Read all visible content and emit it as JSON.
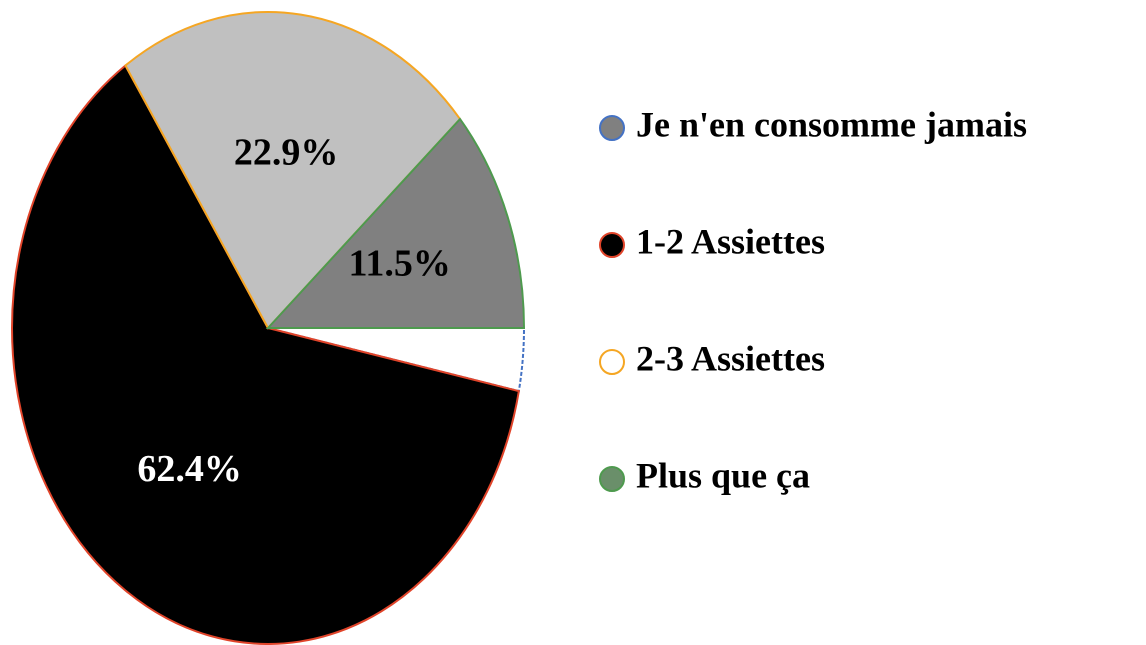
{
  "chart_data": {
    "type": "pie",
    "categories": [
      "Je n'en consomme jamais",
      "1-2 Assiettes",
      "2-3 Assiettes",
      "Plus que ça"
    ],
    "values": [
      3.2,
      62.4,
      22.9,
      11.5
    ],
    "value_labels": [
      null,
      "62.4%",
      "22.9%",
      "11.5%"
    ],
    "colors": [
      "#ffffff",
      "#000000",
      "#c0c0c0",
      "#808080"
    ],
    "edge_colors": [
      "#4472c4",
      "#e0442a",
      "#f5a623",
      "#4e9a4e"
    ],
    "legend_colors": [
      "#808080",
      "#000000",
      "#ffffff",
      "#6a8f6a"
    ],
    "label_colors": [
      null,
      "#ffffff",
      "#000000",
      "#000000"
    ]
  }
}
